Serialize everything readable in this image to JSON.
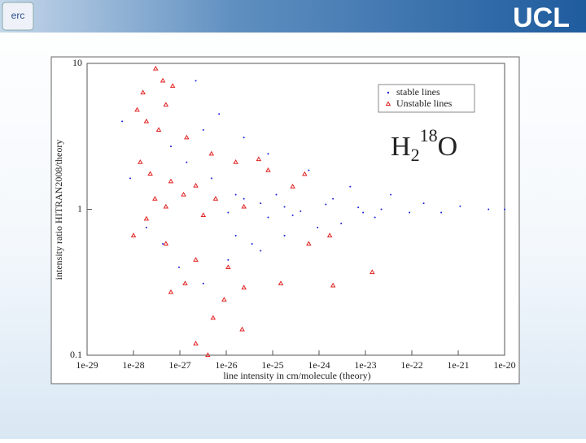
{
  "header": {
    "logo_left": "erc",
    "logo_right": "UCL"
  },
  "chart_data": {
    "type": "scatter",
    "xlabel": "line intensity in cm/molecule (theory)",
    "ylabel": "intensity ratio HITRAN2008/theory",
    "annotation": [
      "H",
      "2",
      "18",
      "O"
    ],
    "xscale": "log",
    "yscale": "log",
    "xlim": [
      1e-29,
      1e-20
    ],
    "ylim": [
      0.1,
      10
    ],
    "xticks": [
      1e-29,
      1e-28,
      1e-27,
      1e-26,
      1e-25,
      1e-24,
      1e-23,
      1e-22,
      1e-21,
      1e-20
    ],
    "yticks": [
      0.1,
      1,
      10
    ],
    "legend": "upper right",
    "series": [
      {
        "name": "stable lines",
        "color": "#1a1adc",
        "marker": "dot",
        "x": [
          5.7e-29,
          2.2e-27,
          7e-27,
          2.4e-26,
          8e-26,
          6e-25,
          4.7e-24,
          3.5e-23,
          1.8e-22,
          1.1e-21,
          4.5e-21,
          1e-20,
          4.3e-22,
          8.9e-23,
          1.6e-23,
          3e-24,
          9.3e-25,
          1.8e-25,
          3.6e-26,
          1.1e-26,
          3.2e-27,
          9.6e-28,
          4.3e-28,
          1.9e-28,
          1.4e-27,
          4.8e-27,
          1.6e-26,
          5.5e-26,
          1.8e-25,
          1.4e-24,
          7e-24,
          2.2e-23,
          2.7e-25,
          8e-26,
          1.1e-26,
          2.4e-26,
          1.2e-25,
          2e-24,
          4e-25,
          8.9e-24,
          8.5e-29,
          6.4e-28,
          3.2e-27,
          1.6e-26,
          5.5e-26
        ],
        "values": [
          4,
          7.6,
          4.5,
          3.1,
          2.4,
          1.85,
          1.43,
          1.26,
          1.1,
          1.05,
          1,
          1,
          0.95,
          0.95,
          0.88,
          0.8,
          0.75,
          0.66,
          0.58,
          0.45,
          0.31,
          0.4,
          0.58,
          0.75,
          2.1,
          1.63,
          1.26,
          1.1,
          1.04,
          1.08,
          1.03,
          1,
          0.91,
          0.88,
          0.95,
          1.18,
          1.26,
          1.18,
          0.97,
          0.95,
          1.63,
          2.7,
          3.5,
          0.66,
          0.52
        ]
      },
      {
        "name": "Unstable lines",
        "color": "#e02020",
        "marker": "triangle",
        "x": [
          3e-28,
          1.6e-28,
          4.3e-28,
          7e-28,
          5e-28,
          1.2e-28,
          1.9e-28,
          3.5e-28,
          1.4e-27,
          4.8e-27,
          1.4e-28,
          2.3e-28,
          6.4e-28,
          2.2e-27,
          1.2e-27,
          2.9e-28,
          5.9e-27,
          5e-28,
          1.9e-28,
          3.2e-27,
          2.4e-26,
          8e-26,
          2.7e-25,
          5e-28,
          2.2e-27,
          1.1e-26,
          2.4e-26,
          1.5e-25,
          2e-24,
          1.4e-23,
          1.3e-27,
          6.4e-28,
          9e-27,
          5.2e-27,
          2.2e-27,
          4e-27,
          2.2e-26,
          4.9e-25,
          1.7e-24,
          6e-25,
          5e-26,
          1.6e-26,
          1e-28
        ],
        "values": [
          9.2,
          6.3,
          7.6,
          7,
          5.2,
          4.8,
          4,
          3.5,
          3.1,
          2.4,
          2.1,
          1.75,
          1.55,
          1.45,
          1.26,
          1.18,
          1.18,
          1.04,
          0.86,
          0.91,
          1.04,
          1.85,
          1.43,
          0.58,
          0.45,
          0.4,
          0.29,
          0.31,
          0.3,
          0.37,
          0.31,
          0.27,
          0.24,
          0.18,
          0.12,
          0.1,
          0.15,
          1.74,
          0.66,
          0.58,
          2.2,
          2.1,
          0.66
        ]
      }
    ]
  }
}
